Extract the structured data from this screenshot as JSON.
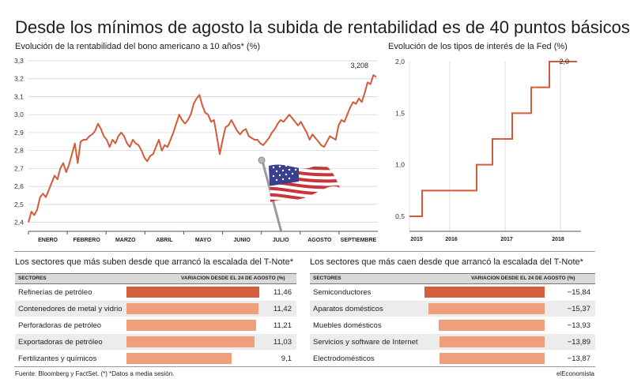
{
  "title": "Desde los mínimos de agosto la subida de rentabilidad es de 40 puntos básicos",
  "left_chart_title": "Evolución de la rentabilidad del bono americano a 10 años* (%)",
  "right_chart_title": "Evolución de los tipos de interés de la Fed (%)",
  "flag_icon": "us-flag-icon",
  "colors": {
    "line": "#d45a3a",
    "bar_top": "#d35f3e",
    "bar": "#ef9f7b",
    "grid": "#cfcfcf"
  },
  "chart_data": [
    {
      "type": "line",
      "title": "Evolución de la rentabilidad del bono americano a 10 años* (%)",
      "x_labels": [
        "ENERO",
        "FEBRERO",
        "MARZO",
        "ABRIL",
        "MAYO",
        "JUNIO",
        "JULIO",
        "AGOSTO",
        "SEPTIEMBRE"
      ],
      "y_ticks": [
        "2,4",
        "2,5",
        "2,6",
        "2,7",
        "2,8",
        "2,9",
        "3,0",
        "3,1",
        "3,2",
        "3,3"
      ],
      "ylim": [
        2.35,
        3.3
      ],
      "grid": true,
      "last_label": "3,208",
      "values": [
        2.4,
        2.46,
        2.44,
        2.47,
        2.54,
        2.56,
        2.54,
        2.58,
        2.62,
        2.66,
        2.64,
        2.7,
        2.73,
        2.68,
        2.72,
        2.78,
        2.84,
        2.73,
        2.85,
        2.86,
        2.86,
        2.88,
        2.89,
        2.91,
        2.95,
        2.92,
        2.88,
        2.86,
        2.82,
        2.86,
        2.84,
        2.88,
        2.9,
        2.88,
        2.84,
        2.82,
        2.86,
        2.84,
        2.83,
        2.8,
        2.76,
        2.74,
        2.77,
        2.78,
        2.82,
        2.86,
        2.8,
        2.83,
        2.82,
        2.86,
        2.9,
        2.95,
        3.0,
        2.97,
        2.95,
        2.97,
        3.0,
        3.06,
        3.09,
        3.11,
        3.05,
        3.01,
        3.0,
        2.96,
        2.97,
        2.88,
        2.78,
        2.86,
        2.93,
        2.94,
        2.97,
        2.94,
        2.91,
        2.89,
        2.91,
        2.92,
        2.88,
        2.87,
        2.86,
        2.86,
        2.84,
        2.83,
        2.85,
        2.87,
        2.9,
        2.92,
        2.95,
        2.97,
        2.96,
        2.98,
        3.0,
        2.98,
        2.96,
        2.94,
        2.96,
        2.93,
        2.9,
        2.86,
        2.89,
        2.87,
        2.85,
        2.83,
        2.82,
        2.85,
        2.88,
        2.87,
        2.86,
        2.94,
        2.97,
        2.96,
        3.0,
        3.04,
        3.07,
        3.06,
        3.09,
        3.07,
        3.12,
        3.18,
        3.17,
        3.22,
        3.21
      ]
    },
    {
      "type": "line",
      "title": "Evolución de los tipos de interés de la Fed (%)",
      "x_labels": [
        "2015",
        "2016",
        "2017",
        "2018"
      ],
      "y_ticks": [
        "0,5",
        "1,0",
        "1,5",
        "2,0"
      ],
      "ylim": [
        0.5,
        2.0
      ],
      "last_label": "2,0",
      "step_values": [
        0.5,
        0.75,
        1.0,
        1.25,
        1.5,
        1.75,
        2.0
      ]
    }
  ],
  "left_table": {
    "title": "Los sectores que más suben desde que arrancó la escalada del T-Note*",
    "col_sectors": "SECTORES",
    "col_variation": "VARIACION DESDE EL 24 DE AGOSTO (%)",
    "rows": [
      {
        "name": "Refinerías de petróleo",
        "value": "11,46",
        "num": 11.46
      },
      {
        "name": "Contenedores de metal y vidrio",
        "value": "11,42",
        "num": 11.42
      },
      {
        "name": "Perforadoras de petróleo",
        "value": "11,21",
        "num": 11.21
      },
      {
        "name": "Exportadoras de petróleo",
        "value": "11,03",
        "num": 11.03
      },
      {
        "name": "Fertilizantes y químicos",
        "value": "9,1",
        "num": 9.1
      }
    ]
  },
  "right_table": {
    "title": "Los sectores que más caen desde que arrancó la escalada del T-Note*",
    "col_sectors": "SECTORES",
    "col_variation": "VARIACION DESDE EL 24 DE AGOSTO (%)",
    "rows": [
      {
        "name": "Semiconductores",
        "value": "−15,84",
        "num": -15.84
      },
      {
        "name": "Aparatos domésticos",
        "value": "−15,37",
        "num": -15.37
      },
      {
        "name": "Muebles domésticos",
        "value": "−13,93",
        "num": -13.93
      },
      {
        "name": "Servicios y software de Internet",
        "value": "−13,89",
        "num": -13.89
      },
      {
        "name": "Electrodomésticos",
        "value": "−13,87",
        "num": -13.87
      }
    ]
  },
  "footer": {
    "source": "Fuente: Bloomberg y FactSet. (*) *Datos a media sesión.",
    "brand": "elEconomista"
  }
}
